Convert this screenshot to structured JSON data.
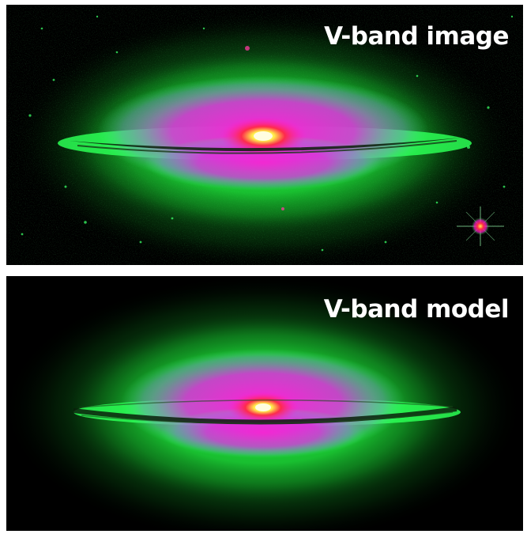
{
  "panels": [
    {
      "label": "V-band image"
    },
    {
      "label": "V-band model"
    }
  ],
  "colors": {
    "background": "#000000",
    "halo": "#1ee83a",
    "bulge": "#ff1fd6",
    "core": "#ff2a44",
    "nucleus": "#fff04a",
    "dust_lane": "#0b1f0b"
  }
}
